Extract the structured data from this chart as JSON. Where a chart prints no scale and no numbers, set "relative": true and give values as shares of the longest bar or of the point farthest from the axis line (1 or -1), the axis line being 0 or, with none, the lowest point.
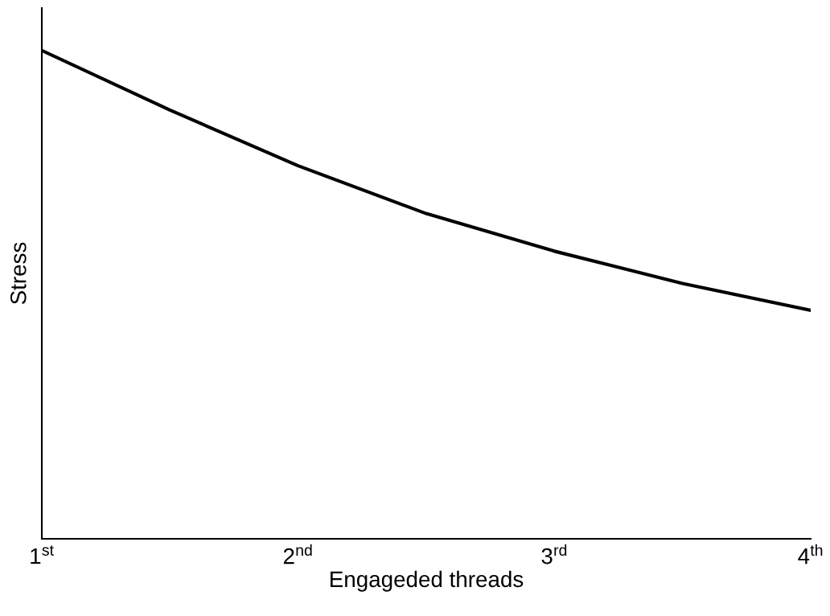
{
  "chart_data": {
    "type": "line",
    "xlabel": "Engageded threads",
    "ylabel": "Stress",
    "relative": true,
    "x": [
      1,
      1.5,
      2,
      2.5,
      3,
      3.5,
      4
    ],
    "xlim": [
      1,
      4
    ],
    "xticks": [
      {
        "value": 1,
        "label": "1$^{st}$"
      },
      {
        "value": 2,
        "label": "2$^{nd}$"
      },
      {
        "value": 3,
        "label": "3$^{rd}$"
      },
      {
        "value": 4,
        "label": "4$^{th}$"
      }
    ],
    "series": [
      {
        "color": "#000000",
        "values": [
          1.0,
          0.878,
          0.764,
          0.666,
          0.589,
          0.523,
          0.468
        ]
      }
    ],
    "marker": "none",
    "line_style": "solid"
  }
}
